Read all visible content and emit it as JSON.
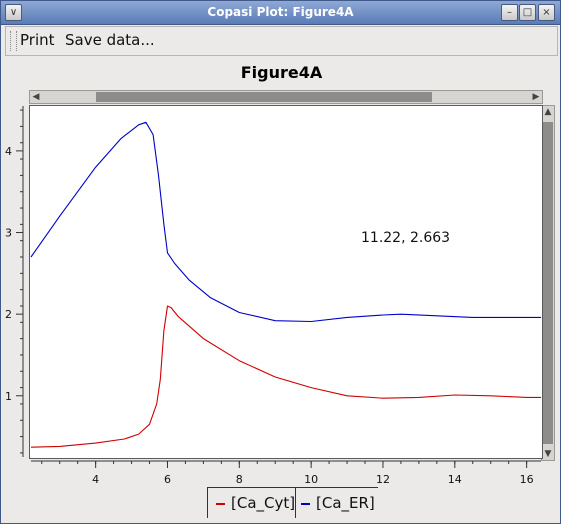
{
  "window": {
    "title": "Copasi Plot: Figure4A",
    "buttons": {
      "menu": "∨",
      "minimize": "–",
      "maximize": "□",
      "close": "×"
    }
  },
  "menu": {
    "print": "Print",
    "save_data": "Save data..."
  },
  "coordinate_readout": "11.22, 2.663",
  "colors": {
    "series_cyt": "#d00000",
    "series_er": "#0000c8"
  },
  "chart_data": {
    "type": "line",
    "title": "Figure4A",
    "xlabel": "",
    "ylabel": "",
    "xlim": [
      2.2,
      16.4
    ],
    "ylim": [
      0.25,
      4.55
    ],
    "x_ticks": [
      4,
      6,
      8,
      10,
      12,
      14,
      16
    ],
    "y_ticks": [
      1,
      2,
      3,
      4
    ],
    "grid": false,
    "legend_position": "bottom",
    "series": [
      {
        "name": "[Ca_Cyt]",
        "color": "#d00000",
        "points": [
          [
            2.2,
            0.37
          ],
          [
            3.0,
            0.38
          ],
          [
            4.0,
            0.42
          ],
          [
            4.8,
            0.47
          ],
          [
            5.2,
            0.53
          ],
          [
            5.5,
            0.65
          ],
          [
            5.7,
            0.9
          ],
          [
            5.8,
            1.2
          ],
          [
            5.9,
            1.8
          ],
          [
            6.0,
            2.1
          ],
          [
            6.1,
            2.08
          ],
          [
            6.3,
            1.97
          ],
          [
            7.0,
            1.7
          ],
          [
            8.0,
            1.43
          ],
          [
            9.0,
            1.23
          ],
          [
            10.0,
            1.1
          ],
          [
            11.0,
            1.0
          ],
          [
            12.0,
            0.97
          ],
          [
            13.0,
            0.98
          ],
          [
            14.0,
            1.01
          ],
          [
            15.0,
            1.0
          ],
          [
            16.0,
            0.98
          ],
          [
            16.4,
            0.98
          ]
        ]
      },
      {
        "name": "[Ca_ER]",
        "color": "#0000c8",
        "points": [
          [
            2.2,
            2.7
          ],
          [
            3.0,
            3.2
          ],
          [
            4.0,
            3.8
          ],
          [
            4.7,
            4.15
          ],
          [
            5.2,
            4.32
          ],
          [
            5.4,
            4.35
          ],
          [
            5.6,
            4.2
          ],
          [
            5.75,
            3.7
          ],
          [
            5.9,
            3.1
          ],
          [
            6.0,
            2.75
          ],
          [
            6.2,
            2.62
          ],
          [
            6.6,
            2.42
          ],
          [
            7.2,
            2.2
          ],
          [
            8.0,
            2.02
          ],
          [
            9.0,
            1.92
          ],
          [
            10.0,
            1.91
          ],
          [
            11.0,
            1.96
          ],
          [
            12.0,
            1.99
          ],
          [
            12.5,
            2.0
          ],
          [
            13.5,
            1.98
          ],
          [
            14.5,
            1.96
          ],
          [
            15.5,
            1.96
          ],
          [
            16.4,
            1.96
          ]
        ]
      }
    ]
  }
}
